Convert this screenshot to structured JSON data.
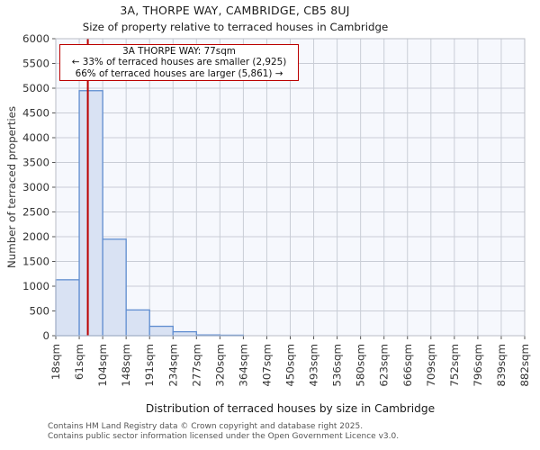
{
  "title": {
    "line1": "3A, THORPE WAY, CAMBRIDGE, CB5 8UJ",
    "line2": "Size of property relative to terraced houses in Cambridge"
  },
  "annotation": {
    "line1": "3A THORPE WAY: 77sqm",
    "line2": "← 33% of terraced houses are smaller (2,925)",
    "line3": "66% of terraced houses are larger (5,861) →"
  },
  "footer": {
    "line1": "Contains HM Land Registry data © Crown copyright and database right 2025.",
    "line2": "Contains public sector information licensed under the Open Government Licence v3.0."
  },
  "chart_data": {
    "type": "bar",
    "title": "Size of property relative to terraced houses in Cambridge",
    "xlabel": "Distribution of terraced houses by size in Cambridge",
    "ylabel": "Number of terraced properties",
    "bin_edges_sqm": [
      18,
      61,
      104,
      148,
      191,
      234,
      277,
      320,
      364,
      407,
      450,
      493,
      536,
      580,
      623,
      666,
      709,
      752,
      796,
      839,
      882
    ],
    "tick_labels": [
      "18sqm",
      "61sqm",
      "104sqm",
      "148sqm",
      "191sqm",
      "234sqm",
      "277sqm",
      "320sqm",
      "364sqm",
      "407sqm",
      "450sqm",
      "493sqm",
      "536sqm",
      "580sqm",
      "623sqm",
      "666sqm",
      "709sqm",
      "752sqm",
      "796sqm",
      "839sqm",
      "882sqm"
    ],
    "values": [
      1130,
      4950,
      1950,
      520,
      190,
      80,
      15,
      10,
      0,
      0,
      0,
      0,
      0,
      0,
      0,
      0,
      0,
      0,
      0,
      0
    ],
    "ylim": [
      0,
      6000
    ],
    "ytick_step": 500,
    "grid": true,
    "marker_value_sqm": 77,
    "colors": {
      "bar_fill": "#d9e2f3",
      "bar_edge": "#5f8dd0",
      "marker_line": "#bb0000",
      "annotation_border": "#bb0000",
      "grid_line": "#c9cdd6",
      "plot_bg": "#f6f8fd",
      "axis_line": "#b9bdc6",
      "tick_text": "#333333"
    }
  }
}
